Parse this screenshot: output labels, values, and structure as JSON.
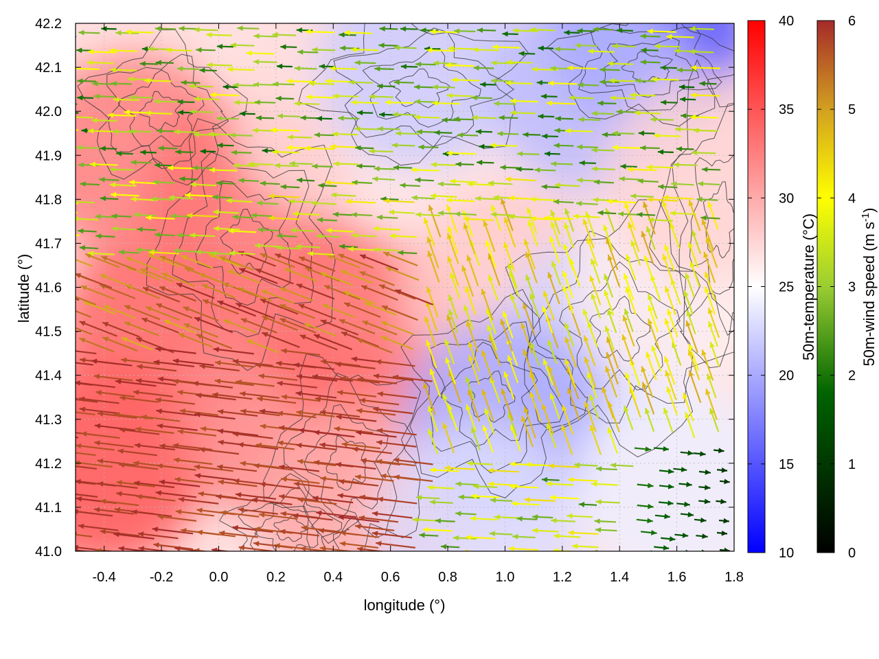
{
  "chart_data": {
    "type": "heatmap",
    "title": "",
    "xlabel": "longitude (°)",
    "ylabel": "latitude (°)",
    "xlim": [
      -0.5,
      1.8
    ],
    "ylim": [
      41.0,
      42.2
    ],
    "x_ticks": [
      "-0.4",
      "-0.2",
      "0.0",
      "0.2",
      "0.4",
      "0.6",
      "0.8",
      "1.0",
      "1.2",
      "1.4",
      "1.6",
      "1.8"
    ],
    "x_tick_values": [
      -0.4,
      -0.2,
      0.0,
      0.2,
      0.4,
      0.6,
      0.8,
      1.0,
      1.2,
      1.4,
      1.6,
      1.8
    ],
    "y_ticks": [
      "41.0",
      "41.1",
      "41.2",
      "41.3",
      "41.4",
      "41.5",
      "41.6",
      "41.7",
      "41.8",
      "41.9",
      "42.0",
      "42.1",
      "42.2"
    ],
    "y_tick_values": [
      41.0,
      41.1,
      41.2,
      41.3,
      41.4,
      41.5,
      41.6,
      41.7,
      41.8,
      41.9,
      42.0,
      42.1,
      42.2
    ],
    "grid": true,
    "layers": [
      "50m-temperature shading",
      "terrain contours",
      "50m-wind vectors"
    ],
    "temperature_colorbar": {
      "label": "50m-temperature (°C)",
      "range": [
        10,
        40
      ],
      "ticks": [
        "10",
        "15",
        "20",
        "25",
        "30",
        "35",
        "40"
      ],
      "tick_values": [
        10,
        15,
        20,
        25,
        30,
        35,
        40
      ],
      "colors": [
        "#0000ff",
        "#ffffff",
        "#ff0000"
      ],
      "stops": [
        10,
        25,
        40
      ]
    },
    "wind_colorbar": {
      "label_main": "50m-wind speed (m s",
      "label_sup": "-1",
      "label_end": ")",
      "range": [
        0,
        6
      ],
      "ticks": [
        "0",
        "1",
        "2",
        "3",
        "4",
        "5",
        "6"
      ],
      "tick_values": [
        0,
        1,
        2,
        3,
        4,
        5,
        6
      ],
      "colors": [
        "#000000",
        "#006400",
        "#9acd32",
        "#ffff00",
        "#d2a020",
        "#a52a2a"
      ],
      "stops": [
        0,
        1.8,
        3.0,
        4.0,
        5.0,
        6.0
      ]
    },
    "temperature_field": [
      {
        "lon": -0.4,
        "lat": 41.2,
        "t": 35.0
      },
      {
        "lon": -0.2,
        "lat": 41.5,
        "t": 34.0
      },
      {
        "lon": -0.3,
        "lat": 41.9,
        "t": 32.5
      },
      {
        "lon": 0.1,
        "lat": 41.8,
        "t": 33.0
      },
      {
        "lon": 0.2,
        "lat": 41.3,
        "t": 32.0
      },
      {
        "lon": 0.5,
        "lat": 41.5,
        "t": 33.5
      },
      {
        "lon": 0.5,
        "lat": 41.1,
        "t": 30.0
      },
      {
        "lon": 0.4,
        "lat": 42.0,
        "t": 27.0
      },
      {
        "lon": 0.8,
        "lat": 41.9,
        "t": 26.5
      },
      {
        "lon": 0.7,
        "lat": 42.1,
        "t": 22.0
      },
      {
        "lon": 1.5,
        "lat": 42.18,
        "t": 15.0
      },
      {
        "lon": 1.3,
        "lat": 42.05,
        "t": 21.0
      },
      {
        "lon": 1.0,
        "lat": 41.6,
        "t": 28.0
      },
      {
        "lon": 1.35,
        "lat": 41.5,
        "t": 22.5
      },
      {
        "lon": 1.0,
        "lat": 41.3,
        "t": 20.0
      },
      {
        "lon": 1.6,
        "lat": 41.6,
        "t": 26.0
      },
      {
        "lon": 1.6,
        "lat": 41.15,
        "t": 24.0
      },
      {
        "lon": 1.7,
        "lat": 41.85,
        "t": 27.5
      },
      {
        "lon": 0.9,
        "lat": 41.05,
        "t": 23.0
      }
    ],
    "contour_levels_note": "",
    "sample_wind": [
      {
        "lon": -0.4,
        "lat": 41.25,
        "u": -5.5,
        "v": 0.5,
        "speed": 5.8
      },
      {
        "lon": 0.2,
        "lat": 41.1,
        "u": -5.5,
        "v": 0.6,
        "speed": 5.7
      },
      {
        "lon": 0.5,
        "lat": 41.45,
        "u": -2.5,
        "v": 3.0,
        "speed": 5.5
      },
      {
        "lon": 0.0,
        "lat": 41.85,
        "u": -4.0,
        "v": 0.3,
        "speed": 4.2
      },
      {
        "lon": 0.6,
        "lat": 41.9,
        "u": -2.0,
        "v": 0.1,
        "speed": 2.2
      },
      {
        "lon": 1.4,
        "lat": 41.6,
        "u": -0.5,
        "v": 2.5,
        "speed": 4.0
      },
      {
        "lon": 1.6,
        "lat": 41.1,
        "u": 0.8,
        "v": 0.0,
        "speed": 1.2
      }
    ]
  }
}
